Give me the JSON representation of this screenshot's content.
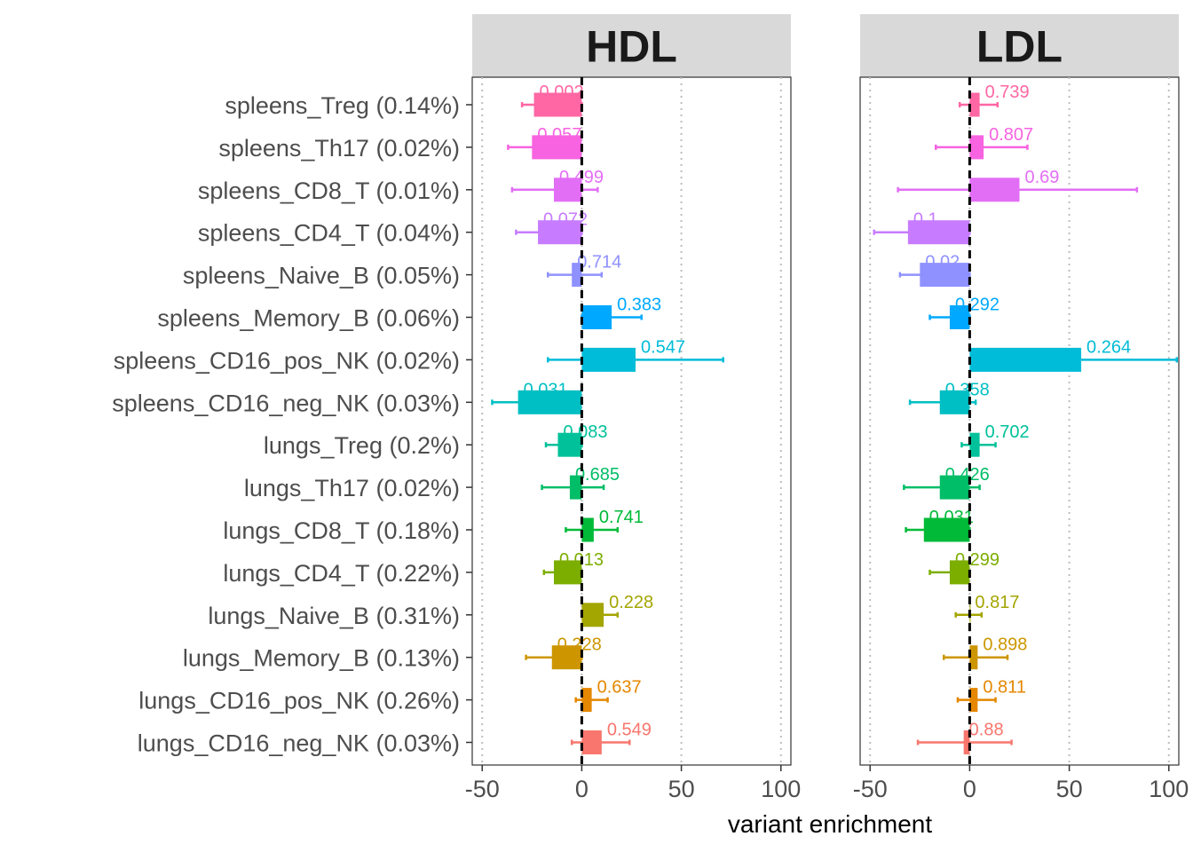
{
  "chart_data": {
    "type": "bar",
    "orientation": "horizontal",
    "xlabel": "variant enrichment",
    "xlim": [
      -55,
      105
    ],
    "xticks": [
      -50,
      0,
      50,
      100
    ],
    "xtick_labels": [
      "-50",
      "0",
      "50",
      "100"
    ],
    "grid_style": "dotted vertical",
    "reference_line": 0,
    "categories": [
      "spleens_Treg (0.14%)",
      "spleens_Th17 (0.02%)",
      "spleens_CD8_T (0.01%)",
      "spleens_CD4_T (0.04%)",
      "spleens_Naive_B (0.05%)",
      "spleens_Memory_B (0.06%)",
      "spleens_CD16_pos_NK (0.02%)",
      "spleens_CD16_neg_NK (0.03%)",
      "lungs_Treg (0.2%)",
      "lungs_Th17 (0.02%)",
      "lungs_CD8_T (0.18%)",
      "lungs_CD4_T (0.22%)",
      "lungs_Naive_B (0.31%)",
      "lungs_Memory_B (0.13%)",
      "lungs_CD16_pos_NK (0.26%)",
      "lungs_CD16_neg_NK (0.03%)"
    ],
    "colors": [
      "#FF67A4",
      "#F763E0",
      "#E36EF6",
      "#C77CFF",
      "#8F91FF",
      "#00A9FF",
      "#00BCD8",
      "#00BFC4",
      "#00C19A",
      "#00BE67",
      "#00BA38",
      "#7CAE00",
      "#A3A500",
      "#CD9600",
      "#E58700",
      "#F8766D"
    ],
    "panels": [
      {
        "name": "HDL",
        "values": [
          -24,
          -25,
          -14,
          -22,
          -5,
          15,
          27,
          -32,
          -12,
          -6,
          6,
          -14,
          11,
          -15,
          5,
          10
        ],
        "ci_low": [
          -30,
          -37,
          -35,
          -33,
          -17,
          0,
          -17,
          -45,
          -18,
          -20,
          -8,
          -19,
          1,
          -28,
          -3,
          -5
        ],
        "ci_high": [
          0,
          0,
          8,
          0,
          10,
          30,
          71,
          0,
          0,
          11,
          18,
          0,
          18,
          0,
          13,
          24
        ],
        "pvalues": [
          "0.002",
          "0.057",
          "0.499",
          "0.072",
          "0.714",
          "0.383",
          "0.547",
          "0.031",
          "0.083",
          "0.685",
          "0.741",
          "0.013",
          "0.228",
          "0.228",
          "0.637",
          "0.549"
        ]
      },
      {
        "name": "LDL",
        "values": [
          5,
          7,
          25,
          -31,
          -25,
          -10,
          56,
          -15,
          5,
          -15,
          -23,
          -10,
          0,
          4,
          4,
          -3
        ],
        "ci_low": [
          -5,
          -17,
          -36,
          -48,
          -35,
          -20,
          0,
          -30,
          -4,
          -33,
          -32,
          -20,
          -7,
          -13,
          -6,
          -26
        ],
        "ci_high": [
          14,
          29,
          84,
          0,
          0,
          0,
          104,
          3,
          13,
          5,
          0,
          0,
          6,
          19,
          13,
          21
        ],
        "pvalues": [
          "0.739",
          "0.807",
          "0.69",
          "0.1",
          "0.02",
          "0.292",
          "0.264",
          "0.358",
          "0.702",
          "0.426",
          "0.031",
          "0.299",
          "0.817",
          "0.898",
          "0.811",
          "0.88"
        ]
      }
    ]
  }
}
